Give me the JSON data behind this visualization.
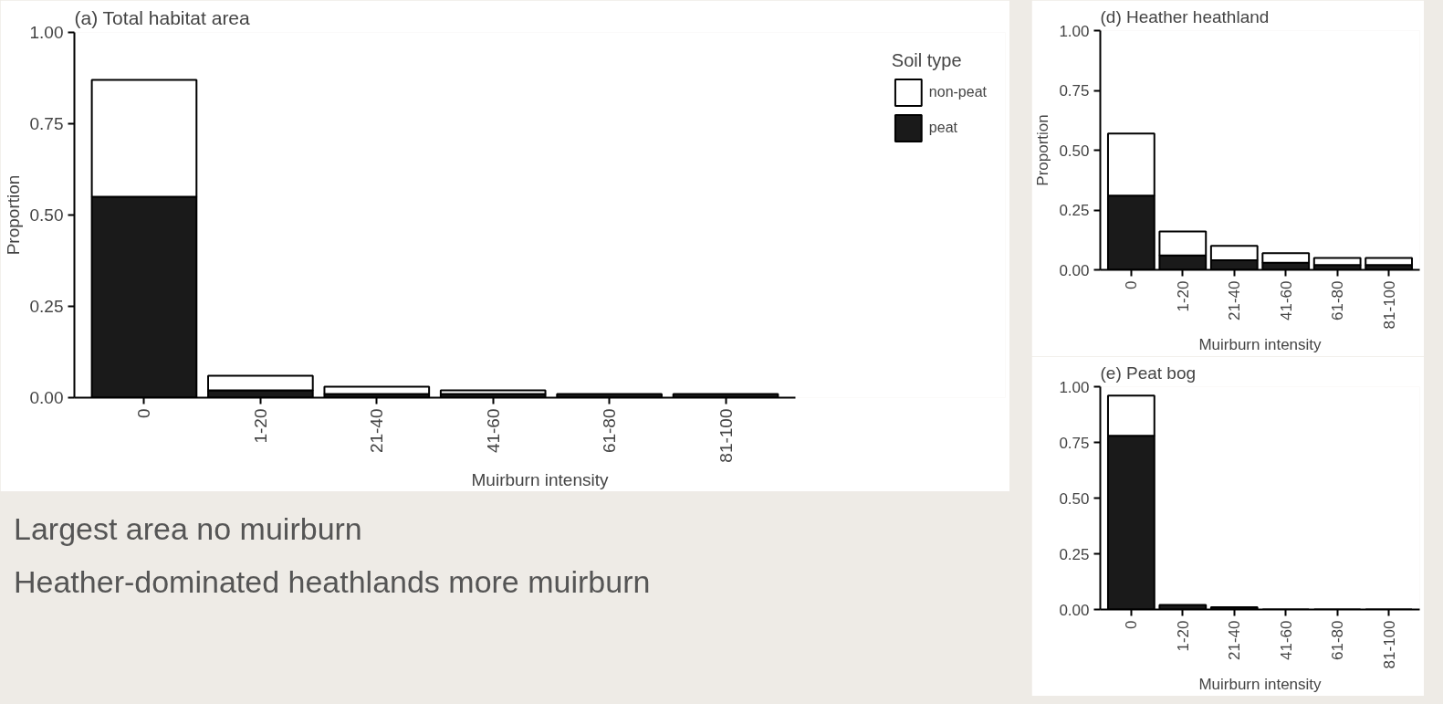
{
  "chart_data": [
    {
      "type": "bar",
      "title": "(a) Total habitat area",
      "xlabel": "Muirburn intensity",
      "ylabel": "Proportion",
      "legend_title": "Soil type",
      "legend": "right",
      "stacked": true,
      "grid": false,
      "categories": [
        "0",
        "1-20",
        "21-40",
        "41-60",
        "61-80",
        "81-100"
      ],
      "series": [
        {
          "name": "peat",
          "color": "#1a1a1a",
          "values": [
            0.55,
            0.02,
            0.01,
            0.01,
            0.01,
            0.01
          ]
        },
        {
          "name": "non-peat",
          "color": "#ffffff",
          "values": [
            0.32,
            0.04,
            0.02,
            0.01,
            null,
            null
          ]
        }
      ],
      "ylim": [
        0,
        1.0
      ],
      "yticks": [
        {
          "value": 0,
          "label": "0.00"
        },
        {
          "value": 0.25,
          "label": "0.25"
        },
        {
          "value": 0.5,
          "label": "0.50"
        },
        {
          "value": 0.75,
          "label": "0.75"
        },
        {
          "value": 1.0,
          "label": "1.00"
        }
      ],
      "annotations": [
        "Largest area no muirburn",
        "Heather-dominated heathlands more muirburn"
      ]
    },
    {
      "type": "bar",
      "title": "(d) Heather heathland",
      "xlabel": "Muirburn intensity",
      "ylabel": "Proportion",
      "legend": false,
      "stacked": true,
      "grid": false,
      "categories": [
        "0",
        "1-20",
        "21-40",
        "41-60",
        "61-80",
        "81-100"
      ],
      "series": [
        {
          "color": "#1a1a1a",
          "values": [
            0.31,
            0.06,
            0.04,
            0.03,
            0.02,
            0.02
          ]
        },
        {
          "color": "#ffffff",
          "values": [
            0.26,
            0.1,
            0.06,
            0.04,
            0.03,
            0.03
          ]
        }
      ],
      "ylim": [
        0,
        1.0
      ],
      "yticks": [
        {
          "value": 0,
          "label": "0.00"
        },
        {
          "value": 0.25,
          "label": "0.25"
        },
        {
          "value": 0.5,
          "label": "0.50"
        },
        {
          "value": 0.75,
          "label": "0.75"
        },
        {
          "value": 1.0,
          "label": "1.00"
        }
      ]
    },
    {
      "type": "bar",
      "title": "(e) Peat bog",
      "xlabel": "Muirburn intensity",
      "legend": false,
      "stacked": true,
      "grid": false,
      "categories": [
        "0",
        "1-20",
        "21-40",
        "41-60",
        "61-80",
        "81-100"
      ],
      "series": [
        {
          "color": "#1a1a1a",
          "values": [
            0.78,
            0.02,
            0.01,
            0.0,
            0.0,
            0.0
          ]
        },
        {
          "color": "#ffffff",
          "values": [
            0.18,
            null,
            null,
            null,
            null,
            null
          ]
        }
      ],
      "ylim": [
        0,
        1.0
      ],
      "yticks": [
        {
          "value": 0,
          "label": "0.00"
        },
        {
          "value": 0.25,
          "label": "0.25"
        },
        {
          "value": 0.5,
          "label": "0.50"
        },
        {
          "value": 0.75,
          "label": "0.75"
        },
        {
          "value": 1.0,
          "label": "1.00"
        }
      ]
    }
  ]
}
